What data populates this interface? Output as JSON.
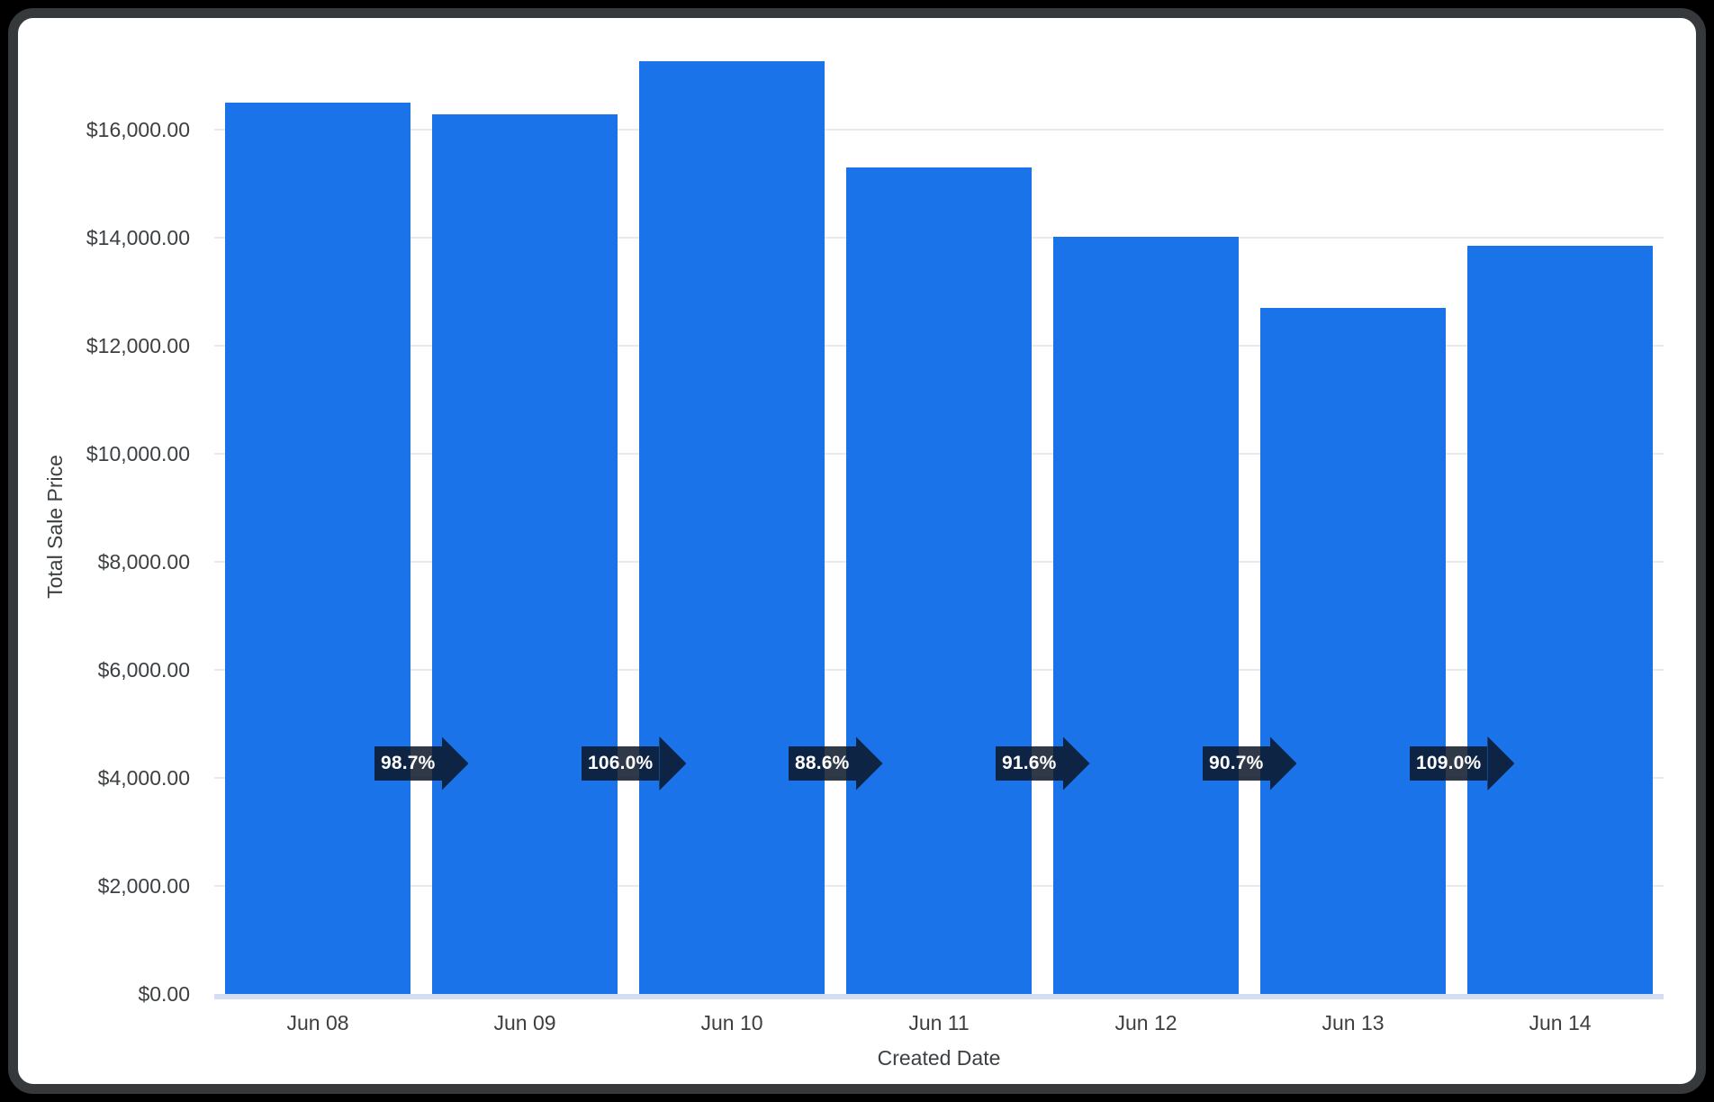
{
  "window": {
    "frame_color": "#000000",
    "card_border_color": "#35393c",
    "card_background": "#ffffff"
  },
  "chart_data": {
    "type": "bar",
    "title": "",
    "xlabel": "Created Date",
    "ylabel": "Total Sale Price",
    "categories": [
      "Jun 08",
      "Jun 09",
      "Jun 10",
      "Jun 11",
      "Jun 12",
      "Jun 13",
      "Jun 14"
    ],
    "values": [
      16500,
      16285,
      17262,
      15294,
      14009,
      12706,
      13850
    ],
    "growth_badges": [
      "98.7%",
      "106.0%",
      "88.6%",
      "91.6%",
      "90.7%",
      "109.0%"
    ],
    "y_ticks": [
      {
        "value": 0,
        "label": "$0.00"
      },
      {
        "value": 2000,
        "label": "$2,000.00"
      },
      {
        "value": 4000,
        "label": "$4,000.00"
      },
      {
        "value": 6000,
        "label": "$6,000.00"
      },
      {
        "value": 8000,
        "label": "$8,000.00"
      },
      {
        "value": 10000,
        "label": "$10,000.00"
      },
      {
        "value": 12000,
        "label": "$12,000.00"
      },
      {
        "value": 14000,
        "label": "$14,000.00"
      },
      {
        "value": 16000,
        "label": "$16,000.00"
      }
    ],
    "ylim": [
      0,
      16000
    ],
    "grid": "horizontal",
    "legend": "none",
    "bar_color": "#1a73e8",
    "gridline_color": "#e8eaed",
    "baseline_color": "#d3def2",
    "badge_color": "rgba(12,22,40,0.85)",
    "badge_text_color": "#ffffff",
    "text_color": "#3c4043"
  }
}
